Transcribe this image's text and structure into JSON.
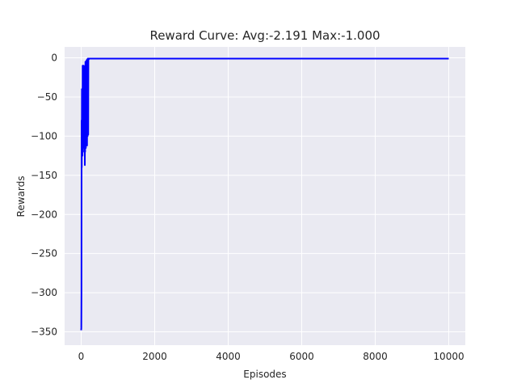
{
  "chart_data": {
    "type": "line",
    "title": "Reward Curve: Avg:-2.191 Max:-1.000",
    "xlabel": "Episodes",
    "ylabel": "Rewards",
    "xlim": [
      -450,
      10450
    ],
    "ylim": [
      -367,
      14
    ],
    "xticks": [
      0,
      2000,
      4000,
      6000,
      8000,
      10000
    ],
    "yticks": [
      0,
      -50,
      -100,
      -150,
      -200,
      -250,
      -300,
      -350
    ],
    "grid": true,
    "background": "#eaeaf2",
    "series": [
      {
        "color": "#0000ff",
        "x": [
          0,
          4,
          8,
          12,
          16,
          20,
          24,
          28,
          32,
          36,
          40,
          44,
          48,
          52,
          56,
          60,
          64,
          68,
          72,
          76,
          80,
          84,
          88,
          92,
          96,
          100,
          104,
          108,
          112,
          116,
          120,
          124,
          128,
          132,
          136,
          140,
          144,
          148,
          152,
          156,
          160,
          164,
          168,
          172,
          176,
          180,
          184,
          188,
          192,
          196,
          200,
          205,
          210,
          215,
          220,
          230,
          240,
          250,
          300,
          1000,
          2000,
          4000,
          6000,
          8000,
          10000
        ],
        "y": [
          -348,
          -345,
          -300,
          -80,
          -140,
          -40,
          -110,
          -90,
          -60,
          -125,
          -10,
          -100,
          -35,
          -120,
          -70,
          -10,
          -95,
          -115,
          -20,
          -85,
          -45,
          -100,
          -15,
          -110,
          -30,
          -137,
          -10,
          -120,
          -55,
          -5,
          -100,
          -25,
          -115,
          -60,
          -8,
          -105,
          -40,
          -3,
          -95,
          -20,
          -112,
          -2,
          -80,
          -12,
          -100,
          -1,
          -60,
          -3,
          -98,
          -1,
          -1,
          -2,
          -1,
          -1,
          -1,
          -1,
          -1,
          -1,
          -1,
          -1,
          -1,
          -1,
          -1,
          -1,
          -1
        ]
      }
    ]
  }
}
